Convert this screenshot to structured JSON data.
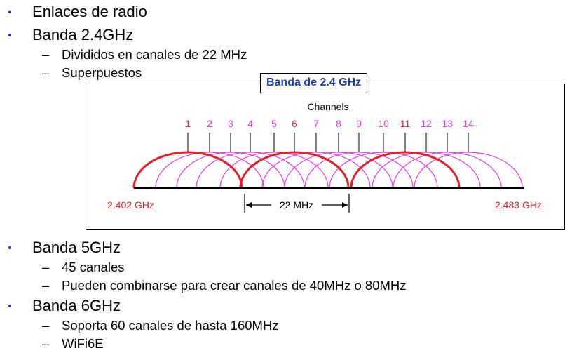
{
  "bullets": {
    "b1": "Enlaces de radio",
    "b2": "Banda 2.4GHz",
    "b2_sub1": "Divididos en canales de 22 MHz",
    "b2_sub2": "Superpuestos",
    "b3": "Banda 5GHz",
    "b3_sub1": "45 canales",
    "b3_sub2": "Pueden combinarse para crear canales de 40MHz o 80MHz",
    "b4": "Banda 6GHz",
    "b4_sub1": "Soporta 60 canales de hasta 160MHz",
    "b4_sub2": "WiFi6E"
  },
  "markers": {
    "bullet": "•",
    "dash": "–"
  },
  "diagram": {
    "band_label": "Banda de 2.4 GHz",
    "channels_title": "Channels",
    "channels": [
      "1",
      "2",
      "3",
      "4",
      "5",
      "6",
      "7",
      "8",
      "9",
      "10",
      "11",
      "12",
      "13",
      "14"
    ],
    "highlighted_channels": [
      "1",
      "6",
      "11"
    ],
    "freq_low": "2.402 GHz",
    "freq_high": "2.483 GHz",
    "width_label": "22 MHz",
    "colors": {
      "red": "#e0202a",
      "magenta": "#e040e0",
      "blue_label": "#1c3bb8",
      "bullet": "#2e3ab0"
    }
  }
}
